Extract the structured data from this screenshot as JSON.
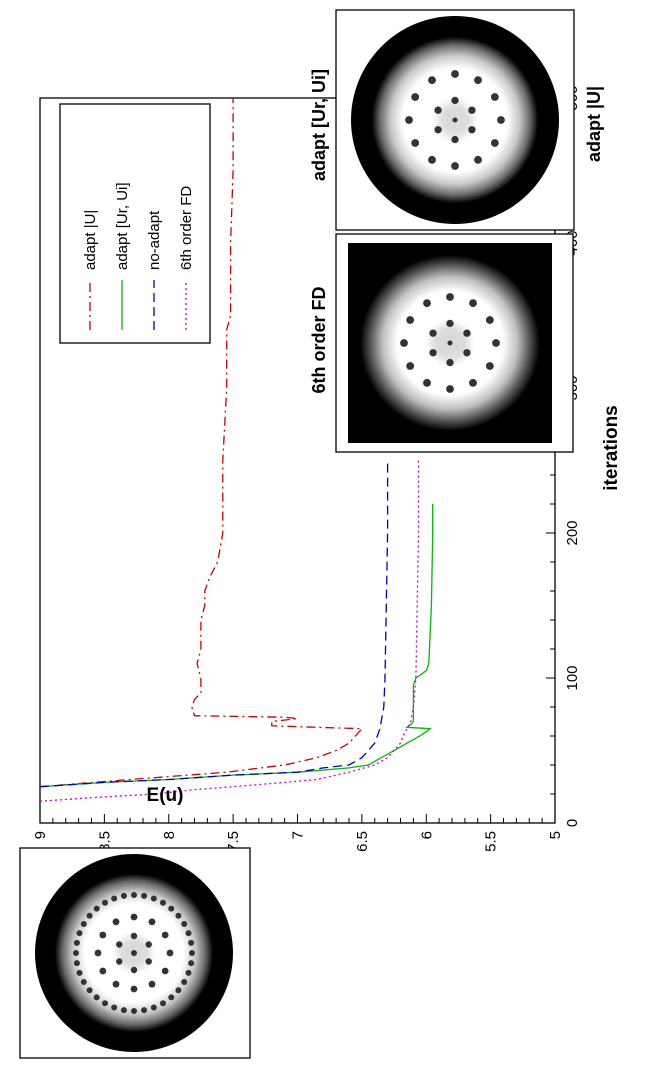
{
  "chart_data": {
    "type": "line",
    "title": "",
    "xlabel": "iterations",
    "ylabel": "E(u)",
    "xlim": [
      0,
      500
    ],
    "ylim": [
      5,
      9
    ],
    "x_ticks": [
      0,
      100,
      200,
      300,
      400,
      500
    ],
    "y_ticks": [
      5,
      5.5,
      6,
      6.5,
      7,
      7.5,
      8,
      8.5,
      9
    ],
    "grid": false,
    "orientation": "rotated 90° counter-clockwise",
    "legend_position": "top-right",
    "series": [
      {
        "name": "adapt |U|",
        "color": "#cc0000",
        "dash": "dash-dot",
        "x": [
          25,
          30,
          35,
          40,
          45,
          50,
          55,
          60,
          65,
          66,
          67,
          70,
          72,
          73,
          74,
          80,
          85,
          90,
          95,
          100,
          110,
          120,
          130,
          140,
          150,
          160,
          170,
          175,
          180,
          200,
          250,
          300,
          340,
          350,
          400,
          450,
          500
        ],
        "y": [
          9.0,
          8.3,
          7.55,
          7.1,
          6.85,
          6.7,
          6.6,
          6.55,
          6.5,
          6.85,
          7.2,
          7.2,
          7.0,
          7.1,
          7.8,
          7.82,
          7.8,
          7.75,
          7.75,
          7.75,
          7.78,
          7.75,
          7.75,
          7.75,
          7.72,
          7.72,
          7.68,
          7.65,
          7.62,
          7.58,
          7.58,
          7.55,
          7.55,
          7.52,
          7.52,
          7.5,
          7.5
        ]
      },
      {
        "name": "adapt [Ur, Ui]",
        "color": "#00bb00",
        "dash": "solid",
        "x": [
          25,
          28,
          30,
          33,
          35,
          38,
          40,
          45,
          50,
          55,
          60,
          63,
          65,
          66,
          68,
          70,
          75,
          80,
          90,
          95,
          100,
          105,
          110,
          150,
          200,
          220
        ],
        "y": [
          9.0,
          8.5,
          8.0,
          7.5,
          7.0,
          6.6,
          6.45,
          6.35,
          6.25,
          6.15,
          6.05,
          6.0,
          5.97,
          6.15,
          6.12,
          6.1,
          6.1,
          6.1,
          6.1,
          6.1,
          6.08,
          6.0,
          5.98,
          5.96,
          5.95,
          5.95
        ]
      },
      {
        "name": "no-adapt",
        "color": "#0000cc",
        "dash": "dashed",
        "x": [
          25,
          28,
          30,
          33,
          35,
          38,
          40,
          45,
          50,
          55,
          60,
          65,
          70,
          80,
          100,
          150,
          200,
          250
        ],
        "y": [
          9.0,
          8.5,
          8.0,
          7.5,
          7.0,
          6.8,
          6.6,
          6.5,
          6.45,
          6.4,
          6.38,
          6.36,
          6.35,
          6.33,
          6.32,
          6.31,
          6.3,
          6.3
        ]
      },
      {
        "name": "6th order FD",
        "color": "#cc00cc",
        "dash": "dotted",
        "x": [
          15,
          18,
          20,
          23,
          25,
          28,
          30,
          35,
          40,
          45,
          50,
          55,
          60,
          65,
          70,
          80,
          100,
          150,
          200,
          250
        ],
        "y": [
          9.0,
          8.5,
          8.1,
          7.8,
          7.5,
          7.1,
          6.85,
          6.6,
          6.4,
          6.3,
          6.25,
          6.2,
          6.18,
          6.15,
          6.12,
          6.1,
          6.08,
          6.07,
          6.06,
          6.06
        ]
      }
    ],
    "insets": [
      {
        "label": "",
        "pattern": "rings of dots",
        "border": "circle"
      },
      {
        "label": "adapt |U|",
        "pattern": "ring of 12 dots",
        "border": "circle"
      },
      {
        "label": "6th order FD",
        "pattern": "ring of 12 dots",
        "border": "square"
      },
      {
        "label": "adapt [Ur, Ui]",
        "pattern": "ring of 12 dots",
        "border": "circle"
      }
    ]
  }
}
